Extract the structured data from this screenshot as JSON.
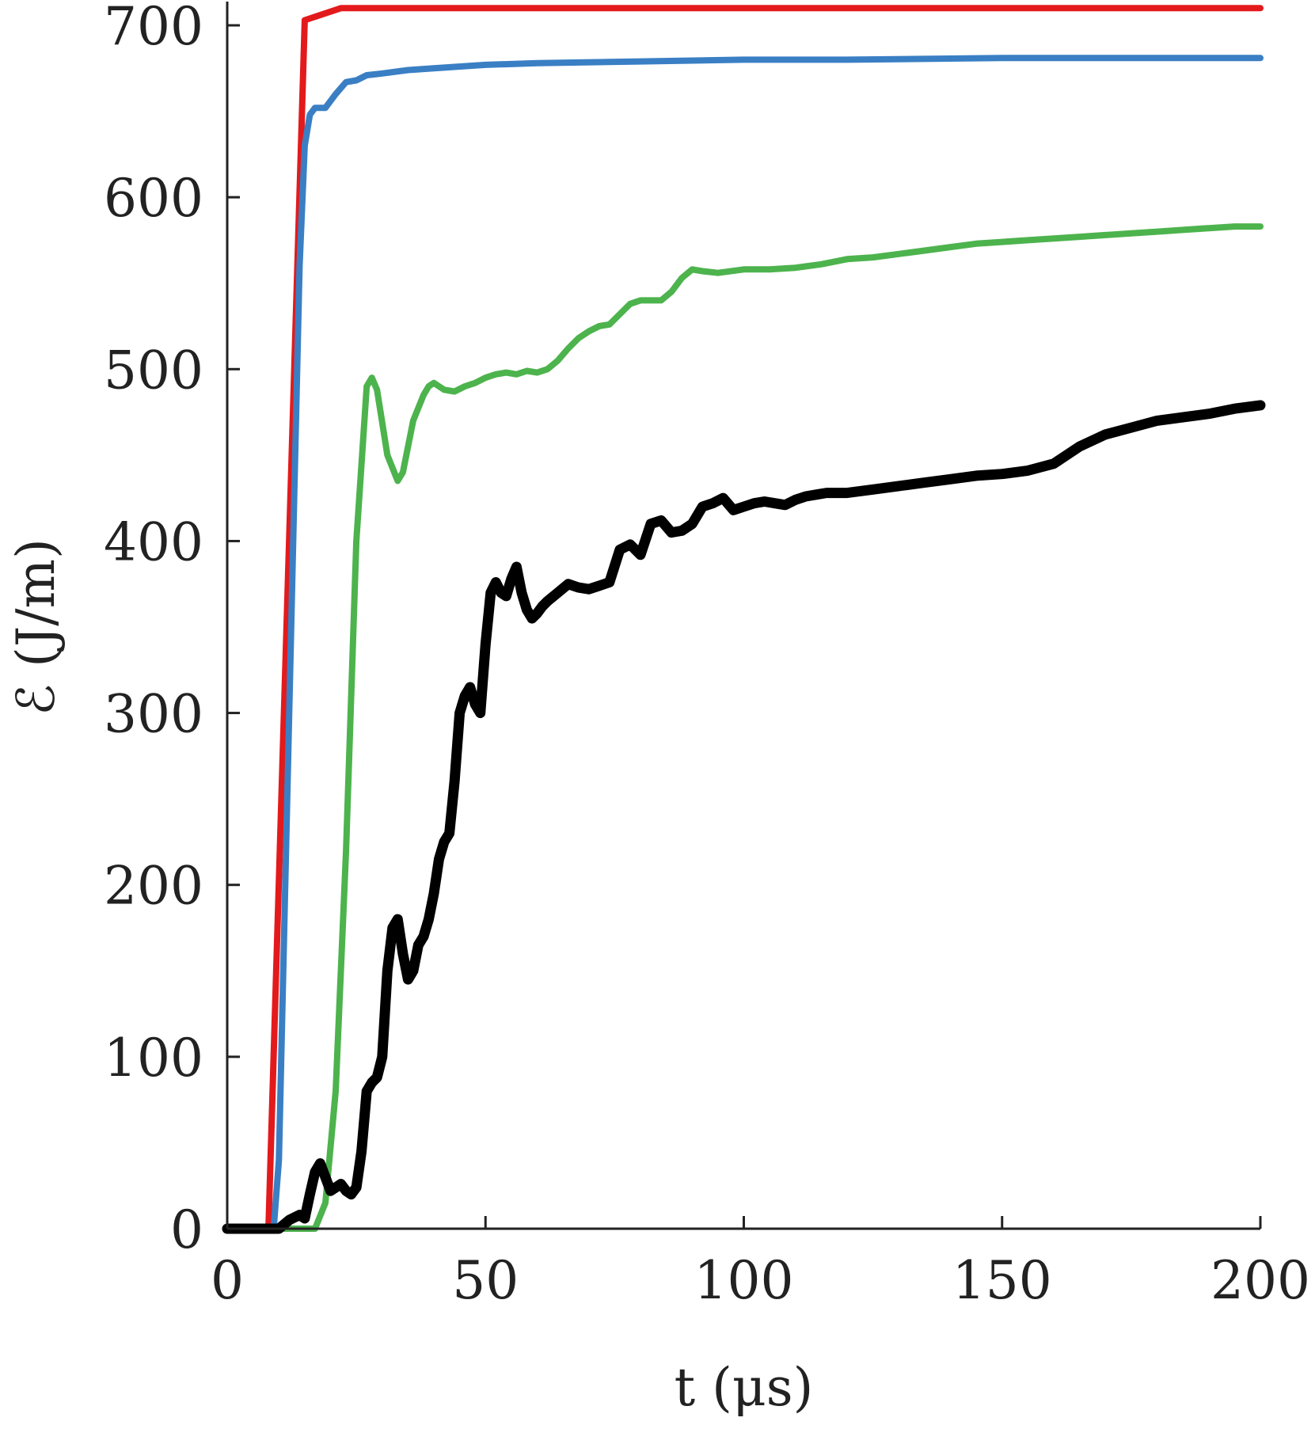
{
  "chart_data": {
    "type": "line",
    "title": "",
    "xlabel": "t (μs)",
    "ylabel": "ℰ (J/m)",
    "xlim": [
      0,
      200
    ],
    "ylim": [
      0,
      700
    ],
    "xticks": [
      0,
      50,
      100,
      150,
      200
    ],
    "yticks": [
      0,
      100,
      200,
      300,
      400,
      500,
      600,
      700
    ],
    "xtick_labels": [
      "0",
      "50",
      "100",
      "150",
      "200"
    ],
    "ytick_labels": [
      "0",
      "100",
      "200",
      "300",
      "400",
      "500",
      "600",
      "700"
    ],
    "grid": false,
    "legend": "none",
    "series": [
      {
        "color": "#e31a1c",
        "line_width": 8,
        "x": [
          0,
          7,
          8,
          15,
          22,
          40,
          80,
          120,
          160,
          200
        ],
        "y": [
          0,
          0,
          2,
          703,
          710,
          710,
          710,
          710,
          710,
          710
        ]
      },
      {
        "color": "#3a7fc4",
        "line_width": 8,
        "x": [
          0,
          9,
          10,
          12,
          14,
          15,
          16,
          17,
          19,
          21,
          23,
          25,
          27,
          30,
          35,
          40,
          50,
          60,
          80,
          100,
          120,
          150,
          200
        ],
        "y": [
          0,
          0,
          40,
          300,
          560,
          630,
          648,
          652,
          652,
          660,
          667,
          668,
          671,
          672,
          674,
          675,
          677,
          678,
          679,
          680,
          680,
          681,
          681
        ]
      },
      {
        "color": "#4db34d",
        "line_width": 8,
        "x": [
          0,
          10,
          17,
          19,
          21,
          23,
          25,
          27,
          28,
          29,
          31,
          33,
          34,
          36,
          38,
          39,
          40,
          42,
          44,
          46,
          48,
          50,
          52,
          54,
          56,
          58,
          60,
          62,
          64,
          66,
          68,
          70,
          72,
          74,
          76,
          78,
          80,
          82,
          84,
          86,
          88,
          90,
          92,
          95,
          100,
          105,
          110,
          115,
          120,
          125,
          130,
          135,
          140,
          145,
          150,
          155,
          160,
          165,
          170,
          175,
          180,
          185,
          190,
          195,
          200
        ],
        "y": [
          0,
          0,
          0,
          15,
          80,
          220,
          400,
          490,
          495,
          488,
          450,
          435,
          440,
          470,
          485,
          490,
          492,
          488,
          487,
          490,
          492,
          495,
          497,
          498,
          497,
          499,
          498,
          500,
          505,
          512,
          518,
          522,
          525,
          526,
          532,
          538,
          540,
          540,
          540,
          545,
          553,
          558,
          557,
          556,
          558,
          558,
          559,
          561,
          564,
          565,
          567,
          569,
          571,
          573,
          574,
          575,
          576,
          577,
          578,
          579,
          580,
          581,
          582,
          583,
          583
        ]
      },
      {
        "color": "#000000",
        "line_width": 13,
        "x": [
          0,
          10,
          12,
          14,
          15,
          16,
          17,
          18,
          19,
          20,
          21,
          22,
          23,
          24,
          25,
          26,
          27,
          28,
          29,
          30,
          31,
          32,
          33,
          34,
          35,
          36,
          37,
          38,
          39,
          40,
          41,
          42,
          43,
          44,
          45,
          46,
          47,
          48,
          49,
          50,
          51,
          52,
          53,
          54,
          55,
          56,
          57,
          58,
          59,
          60,
          61,
          62,
          64,
          66,
          68,
          70,
          72,
          74,
          76,
          78,
          80,
          82,
          84,
          86,
          88,
          90,
          92,
          94,
          96,
          98,
          100,
          102,
          104,
          106,
          108,
          110,
          112,
          114,
          116,
          118,
          120,
          125,
          130,
          135,
          140,
          145,
          150,
          155,
          160,
          165,
          170,
          175,
          180,
          185,
          190,
          195,
          200
        ],
        "y": [
          0,
          0,
          5,
          8,
          6,
          20,
          33,
          38,
          30,
          22,
          24,
          26,
          22,
          20,
          24,
          45,
          80,
          85,
          88,
          100,
          150,
          175,
          180,
          160,
          145,
          150,
          165,
          170,
          180,
          195,
          215,
          225,
          230,
          260,
          300,
          310,
          315,
          305,
          300,
          340,
          370,
          376,
          370,
          368,
          378,
          385,
          370,
          360,
          355,
          358,
          362,
          365,
          370,
          375,
          373,
          372,
          374,
          376,
          395,
          398,
          392,
          410,
          412,
          405,
          406,
          410,
          420,
          422,
          425,
          418,
          420,
          422,
          423,
          422,
          421,
          424,
          426,
          427,
          428,
          428,
          428,
          430,
          432,
          434,
          436,
          438,
          439,
          441,
          445,
          455,
          462,
          466,
          470,
          472,
          474,
          477,
          479
        ]
      }
    ]
  }
}
